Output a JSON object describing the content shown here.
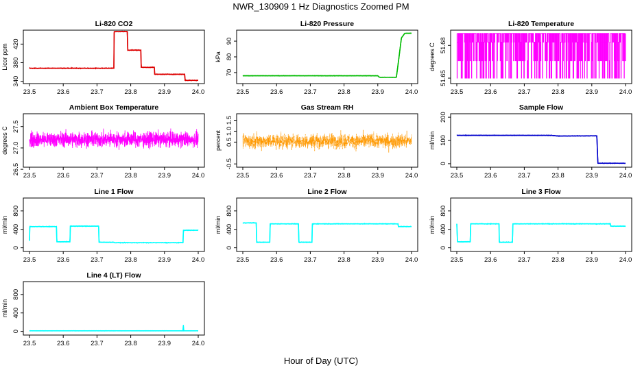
{
  "figure": {
    "title": "NWR_130909  1 Hz Diagnostics Zoomed PM",
    "xlabel": "Hour of Day (UTC)"
  },
  "chart_data": [
    {
      "type": "line",
      "title": "Li-820 CO2",
      "ylabel": "Licor ppm",
      "color": "#dd0000",
      "xlim": [
        23.5,
        24.0
      ],
      "xticks": [
        "23.5",
        "23.6",
        "23.7",
        "23.8",
        "23.9",
        "24.0"
      ],
      "ylim": [
        335,
        450
      ],
      "yticks": [
        "340",
        "380",
        "420"
      ],
      "noise": 0.6,
      "series": [
        {
          "points": [
            [
              23.5,
              368
            ],
            [
              23.75,
              368
            ],
            [
              23.751,
              447
            ],
            [
              23.79,
              447
            ],
            [
              23.791,
              407
            ],
            [
              23.83,
              407
            ],
            [
              23.831,
              370
            ],
            [
              23.87,
              370
            ],
            [
              23.871,
              355
            ],
            [
              23.96,
              355
            ],
            [
              23.961,
              342
            ],
            [
              24.0,
              342
            ]
          ]
        }
      ]
    },
    {
      "type": "line",
      "title": "Li-820 Pressure",
      "ylabel": "kPa",
      "color": "#00bb00",
      "xlim": [
        23.5,
        24.0
      ],
      "xticks": [
        "23.5",
        "23.6",
        "23.7",
        "23.8",
        "23.9",
        "24.0"
      ],
      "ylim": [
        63,
        97
      ],
      "yticks": [
        "70",
        "80",
        "90"
      ],
      "noise": 0.1,
      "series": [
        {
          "points": [
            [
              23.5,
              68
            ],
            [
              23.9,
              68
            ],
            [
              23.905,
              67
            ],
            [
              23.955,
              67
            ],
            [
              23.96,
              75
            ],
            [
              23.97,
              92
            ],
            [
              23.98,
              95
            ],
            [
              24.0,
              95
            ]
          ]
        }
      ]
    },
    {
      "type": "toggle",
      "title": "Li-820 Temperature",
      "ylabel": "degrees C",
      "color": "#ff00ff",
      "xlim": [
        23.5,
        24.0
      ],
      "xticks": [
        "23.5",
        "23.6",
        "23.7",
        "23.8",
        "23.9",
        "24.0"
      ],
      "ylim": [
        51.645,
        51.694
      ],
      "yticks": [
        "51.65",
        "51.68"
      ],
      "levels": [
        51.65,
        51.666,
        51.683,
        51.691
      ]
    },
    {
      "type": "noise",
      "title": "Ambient Box Temperature",
      "ylabel": "degrees C",
      "color": "#ff00ff",
      "xlim": [
        23.5,
        24.0
      ],
      "xticks": [
        "23.5",
        "23.6",
        "23.7",
        "23.8",
        "23.9",
        "24.0"
      ],
      "ylim": [
        26.55,
        27.8
      ],
      "yticks": [
        "26.5",
        "27.0",
        "27.5"
      ],
      "center": 27.2,
      "spread": 0.17
    },
    {
      "type": "noise",
      "title": "Gas Stream RH",
      "ylabel": "percent",
      "color": "#ff9900",
      "dotted": true,
      "xlim": [
        23.5,
        24.0
      ],
      "xticks": [
        "23.5",
        "23.6",
        "23.7",
        "23.8",
        "23.9",
        "24.0"
      ],
      "ylim": [
        -0.65,
        1.8
      ],
      "yticks": [
        "-0.5",
        "0.5",
        "1.0",
        "1.5"
      ],
      "center": 0.55,
      "spread": 0.32
    },
    {
      "type": "line",
      "title": "Sample Flow",
      "ylabel": "ml/min",
      "color": "#0000cc",
      "xlim": [
        23.5,
        24.0
      ],
      "xticks": [
        "23.5",
        "23.6",
        "23.7",
        "23.8",
        "23.9",
        "24.0"
      ],
      "ylim": [
        -15,
        215
      ],
      "yticks": [
        "0",
        "100",
        "200"
      ],
      "noise": 0.8,
      "series": [
        {
          "points": [
            [
              23.5,
              122
            ],
            [
              23.78,
              122
            ],
            [
              23.8,
              119
            ],
            [
              23.915,
              120
            ],
            [
              23.918,
              2
            ],
            [
              24.0,
              2
            ]
          ]
        }
      ]
    },
    {
      "type": "line",
      "title": "Line 1 Flow",
      "ylabel": "ml/min",
      "color": "#00ffff",
      "xlim": [
        23.5,
        24.0
      ],
      "xticks": [
        "23.5",
        "23.6",
        "23.7",
        "23.8",
        "23.9",
        "24.0"
      ],
      "ylim": [
        -80,
        1080
      ],
      "yticks": [
        "0",
        "400",
        "800"
      ],
      "noise": 5,
      "series": [
        {
          "points": [
            [
              23.5,
              150
            ],
            [
              23.501,
              460
            ],
            [
              23.58,
              460
            ],
            [
              23.581,
              130
            ],
            [
              23.62,
              130
            ],
            [
              23.621,
              470
            ],
            [
              23.705,
              470
            ],
            [
              23.706,
              120
            ],
            [
              23.75,
              120
            ],
            [
              23.751,
              110
            ],
            [
              23.955,
              110
            ],
            [
              23.956,
              380
            ],
            [
              24.0,
              380
            ]
          ]
        }
      ]
    },
    {
      "type": "line",
      "title": "Line 2 Flow",
      "ylabel": "ml/min",
      "color": "#00ffff",
      "xlim": [
        23.5,
        24.0
      ],
      "xticks": [
        "23.5",
        "23.6",
        "23.7",
        "23.8",
        "23.9",
        "24.0"
      ],
      "ylim": [
        -80,
        1080
      ],
      "yticks": [
        "0",
        "400",
        "800"
      ],
      "noise": 5,
      "series": [
        {
          "points": [
            [
              23.5,
              540
            ],
            [
              23.54,
              540
            ],
            [
              23.541,
              120
            ],
            [
              23.58,
              120
            ],
            [
              23.581,
              520
            ],
            [
              23.665,
              520
            ],
            [
              23.666,
              120
            ],
            [
              23.705,
              120
            ],
            [
              23.706,
              520
            ],
            [
              23.96,
              520
            ],
            [
              23.961,
              460
            ],
            [
              24.0,
              460
            ]
          ]
        }
      ]
    },
    {
      "type": "line",
      "title": "Line 3 Flow",
      "ylabel": "ml/min",
      "color": "#00ffff",
      "xlim": [
        23.5,
        24.0
      ],
      "xticks": [
        "23.5",
        "23.6",
        "23.7",
        "23.8",
        "23.9",
        "24.0"
      ],
      "ylim": [
        -80,
        1080
      ],
      "yticks": [
        "0",
        "400",
        "800"
      ],
      "noise": 5,
      "series": [
        {
          "points": [
            [
              23.5,
              520
            ],
            [
              23.502,
              130
            ],
            [
              23.54,
              130
            ],
            [
              23.541,
              520
            ],
            [
              23.625,
              520
            ],
            [
              23.626,
              120
            ],
            [
              23.665,
              120
            ],
            [
              23.666,
              520
            ],
            [
              23.955,
              520
            ],
            [
              23.956,
              470
            ],
            [
              24.0,
              470
            ]
          ]
        }
      ]
    },
    {
      "type": "line",
      "title": "Line 4 (LT) Flow",
      "ylabel": "ml/min",
      "color": "#00ffff",
      "xlim": [
        23.5,
        24.0
      ],
      "xticks": [
        "23.5",
        "23.6",
        "23.7",
        "23.8",
        "23.9",
        "24.0"
      ],
      "ylim": [
        -80,
        1080
      ],
      "yticks": [
        "0",
        "400",
        "800"
      ],
      "noise": 1.5,
      "series": [
        {
          "points": [
            [
              23.5,
              12
            ],
            [
              23.955,
              12
            ],
            [
              23.956,
              140
            ],
            [
              23.957,
              12
            ],
            [
              24.0,
              12
            ]
          ]
        }
      ]
    }
  ]
}
